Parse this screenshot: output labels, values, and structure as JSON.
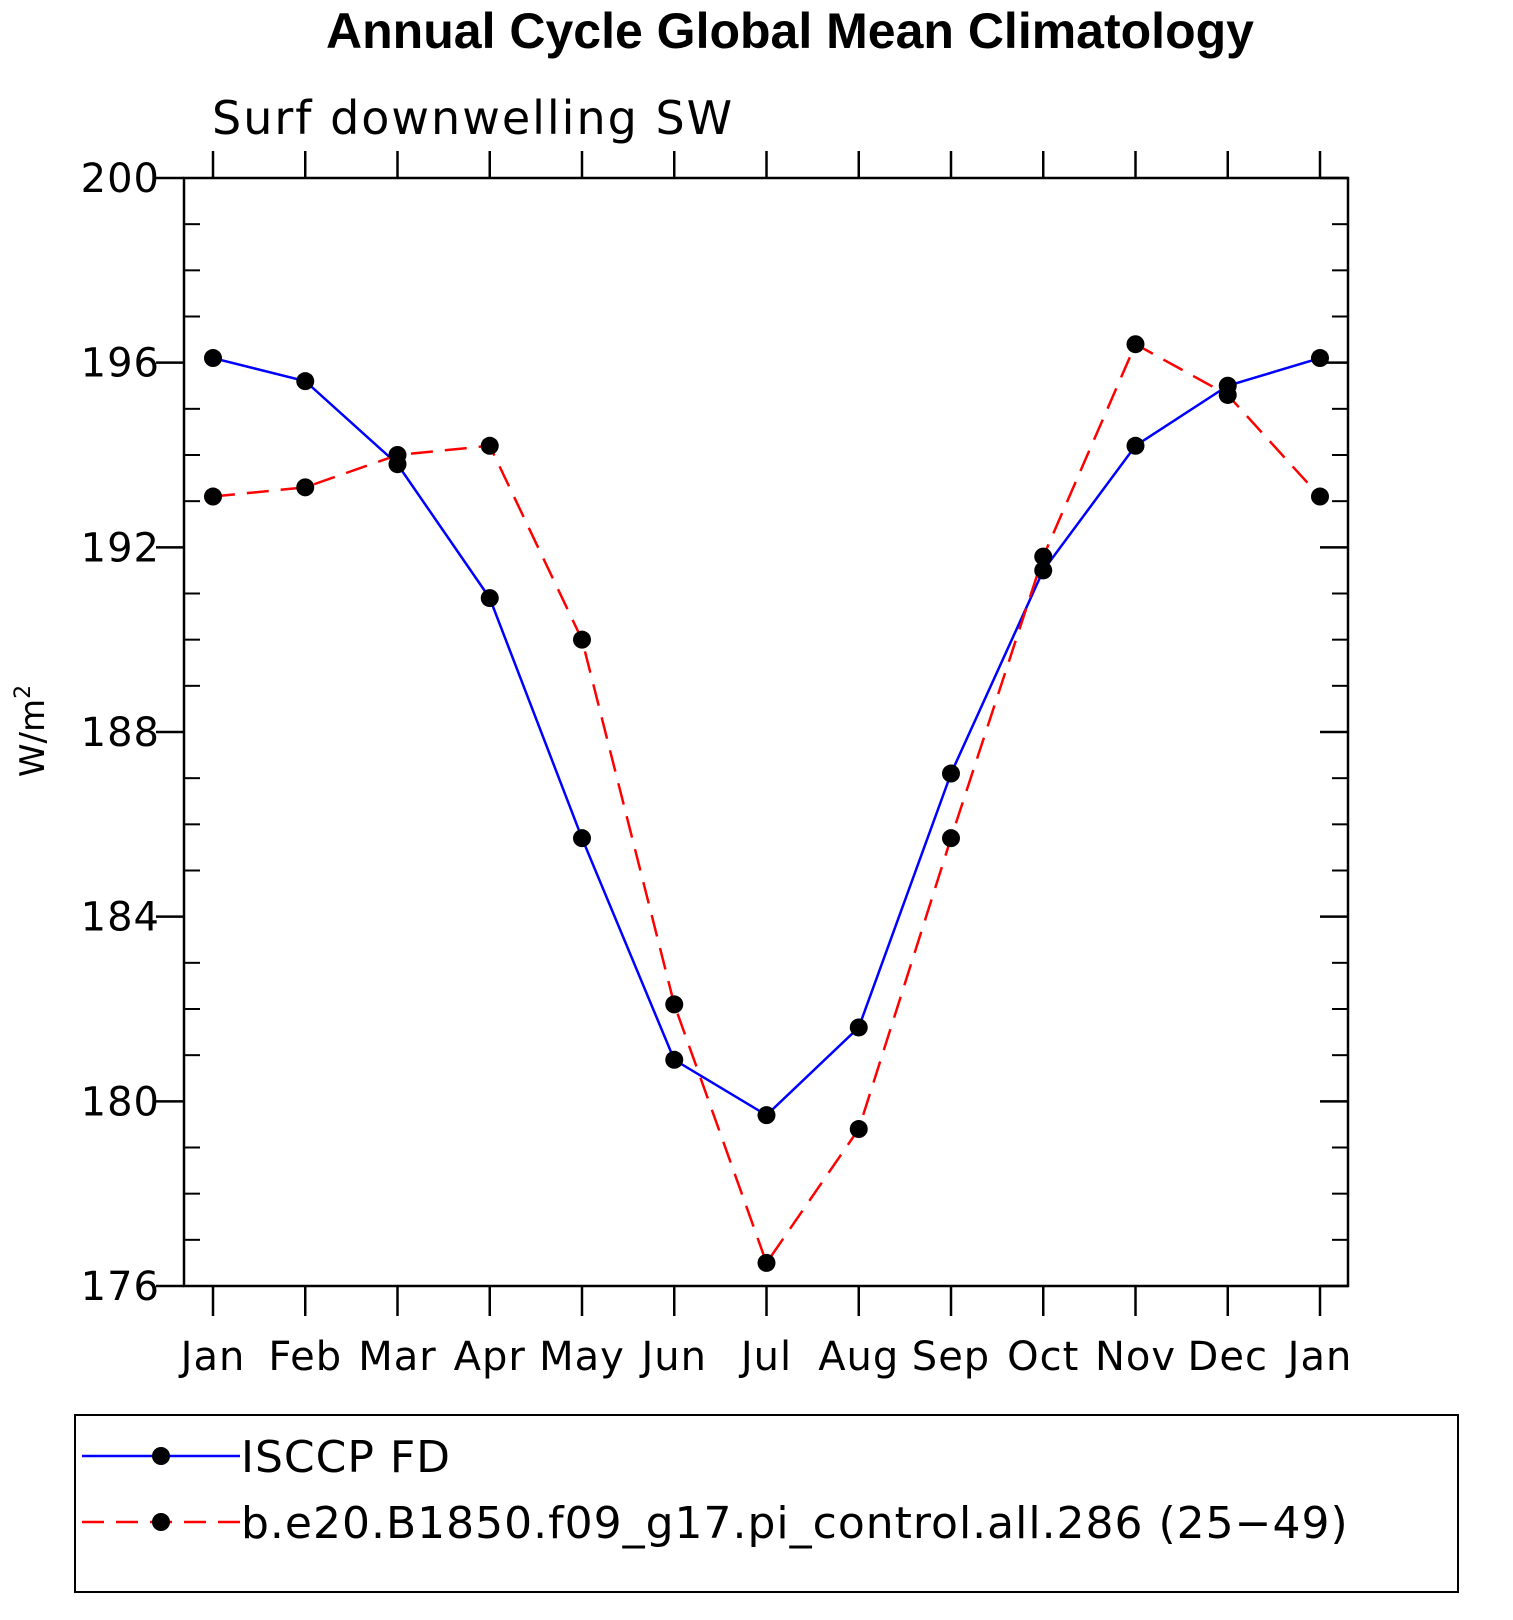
{
  "chart_data": {
    "type": "line",
    "title": "Annual Cycle Global Mean Climatology",
    "subtitle": "Surf downwelling SW",
    "xlabel": "",
    "ylabel": "W/m",
    "ylabel_superscript": "2",
    "categories": [
      "Jan",
      "Feb",
      "Mar",
      "Apr",
      "May",
      "Jun",
      "Jul",
      "Aug",
      "Sep",
      "Oct",
      "Nov",
      "Dec",
      "Jan"
    ],
    "ylim": [
      176,
      200
    ],
    "yticks": [
      "176",
      "180",
      "184",
      "188",
      "192",
      "196",
      "200"
    ],
    "grid": false,
    "legend_position": "bottom",
    "series": [
      {
        "name": "ISCCP FD",
        "color": "#0000ff",
        "dash": "solid",
        "marker": "circle",
        "values": [
          196.1,
          195.6,
          193.8,
          190.9,
          185.7,
          180.9,
          179.7,
          181.6,
          187.1,
          191.5,
          194.2,
          195.5,
          196.1
        ]
      },
      {
        "name": "b.e20.B1850.f09_g17.pi_control.all.286 (25−49)",
        "color": "#ff0000",
        "dash": "dashed",
        "marker": "circle",
        "values": [
          193.1,
          193.3,
          194.0,
          194.2,
          190.0,
          182.1,
          176.5,
          179.4,
          185.7,
          191.8,
          196.4,
          195.3,
          193.1
        ]
      }
    ]
  }
}
